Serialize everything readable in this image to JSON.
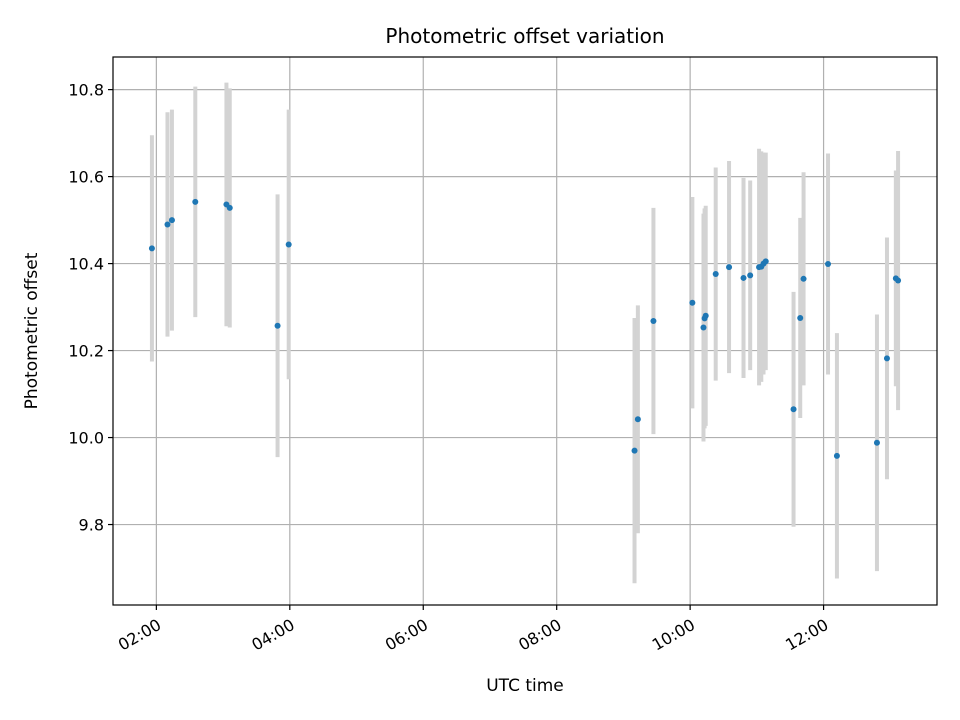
{
  "chart_data": {
    "type": "scatter",
    "title": "Photometric offset variation",
    "xlabel": "UTC time",
    "ylabel": "Photometric offset",
    "x_is_time": true,
    "xlim": [
      "01:21",
      "13:42"
    ],
    "ylim": [
      9.615,
      10.875
    ],
    "x_ticks": [
      "02:00",
      "04:00",
      "06:00",
      "08:00",
      "10:00",
      "12:00"
    ],
    "y_ticks": [
      9.8,
      10.0,
      10.2,
      10.4,
      10.6,
      10.8
    ],
    "grid": true,
    "marker_color": "#1f77b4",
    "errorbar_color": "#d3d3d3",
    "points": [
      {
        "t": "01:56",
        "y": 10.435,
        "err": 0.26
      },
      {
        "t": "02:10",
        "y": 10.49,
        "err": 0.258
      },
      {
        "t": "02:14",
        "y": 10.5,
        "err": 0.254
      },
      {
        "t": "02:35",
        "y": 10.542,
        "err": 0.265
      },
      {
        "t": "03:03",
        "y": 10.536,
        "err": 0.28
      },
      {
        "t": "03:06",
        "y": 10.528,
        "err": 0.275
      },
      {
        "t": "03:49",
        "y": 10.257,
        "err": 0.302
      },
      {
        "t": "03:59",
        "y": 10.444,
        "err": 0.31
      },
      {
        "t": "09:10",
        "y": 9.97,
        "err": 0.305
      },
      {
        "t": "09:13",
        "y": 10.042,
        "err": 0.262
      },
      {
        "t": "09:27",
        "y": 10.268,
        "err": 0.26
      },
      {
        "t": "10:02",
        "y": 10.31,
        "err": 0.243
      },
      {
        "t": "10:12",
        "y": 10.253,
        "err": 0.262
      },
      {
        "t": "10:13",
        "y": 10.274,
        "err": 0.253
      },
      {
        "t": "10:14",
        "y": 10.28,
        "err": 0.253
      },
      {
        "t": "10:23",
        "y": 10.376,
        "err": 0.245
      },
      {
        "t": "10:35",
        "y": 10.392,
        "err": 0.244
      },
      {
        "t": "10:48",
        "y": 10.367,
        "err": 0.23
      },
      {
        "t": "10:54",
        "y": 10.373,
        "err": 0.218
      },
      {
        "t": "11:02",
        "y": 10.392,
        "err": 0.272
      },
      {
        "t": "11:04",
        "y": 10.393,
        "err": 0.265
      },
      {
        "t": "11:06",
        "y": 10.4,
        "err": 0.255
      },
      {
        "t": "11:08",
        "y": 10.405,
        "err": 0.25
      },
      {
        "t": "11:33",
        "y": 10.065,
        "err": 0.27
      },
      {
        "t": "11:39",
        "y": 10.275,
        "err": 0.23
      },
      {
        "t": "11:42",
        "y": 10.365,
        "err": 0.245
      },
      {
        "t": "12:04",
        "y": 10.399,
        "err": 0.254
      },
      {
        "t": "12:12",
        "y": 9.958,
        "err": 0.282
      },
      {
        "t": "12:48",
        "y": 9.988,
        "err": 0.295
      },
      {
        "t": "12:57",
        "y": 10.182,
        "err": 0.278
      },
      {
        "t": "13:05",
        "y": 10.366,
        "err": 0.248
      },
      {
        "t": "13:07",
        "y": 10.361,
        "err": 0.298
      }
    ]
  }
}
